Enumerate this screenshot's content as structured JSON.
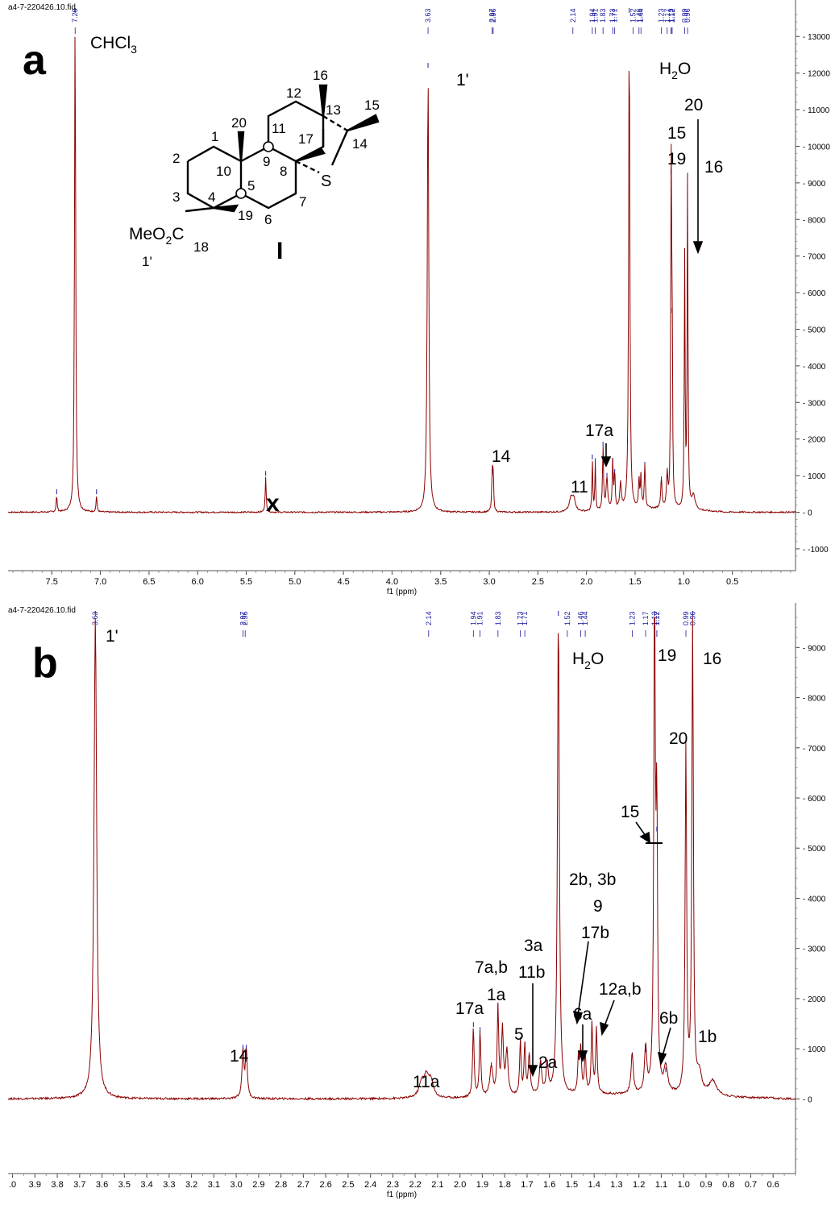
{
  "chart_data": [
    {
      "type": "line",
      "panel": "a",
      "file_id": "a4-7-220426.10.fid",
      "xlabel": "f1 (ppm)",
      "x_range": [
        7.95,
        -0.15
      ],
      "x_ticks": [
        "7.5",
        "7.0",
        "6.5",
        "6.0",
        "5.5",
        "5.0",
        "4.5",
        "4.0",
        "3.5",
        "3.0",
        "2.5",
        "2.0",
        "1.5",
        "1.0",
        "0.5"
      ],
      "y_range": [
        -1200,
        13600
      ],
      "y_ticks": [
        "13000",
        "12000",
        "11000",
        "10000",
        "9000",
        "8000",
        "7000",
        "6000",
        "5000",
        "4000",
        "3000",
        "2000",
        "1000",
        "0",
        "-1000"
      ],
      "peaks": [
        {
          "x": 7.45,
          "y": 450,
          "w": 0.006
        },
        {
          "x": 7.26,
          "y": 13600,
          "w": 0.007
        },
        {
          "x": 7.04,
          "y": 450,
          "w": 0.006
        },
        {
          "x": 5.3,
          "y": 950,
          "w": 0.006
        },
        {
          "x": 3.63,
          "y": 12100,
          "w": 0.009
        },
        {
          "x": 2.97,
          "y": 1000,
          "w": 0.006
        },
        {
          "x": 2.96,
          "y": 1000,
          "w": 0.006
        },
        {
          "x": 2.16,
          "y": 350,
          "w": 0.02
        },
        {
          "x": 2.13,
          "y": 330,
          "w": 0.02
        },
        {
          "x": 1.94,
          "y": 1400,
          "w": 0.005
        },
        {
          "x": 1.91,
          "y": 1300,
          "w": 0.005
        },
        {
          "x": 1.83,
          "y": 1750,
          "w": 0.006
        },
        {
          "x": 1.79,
          "y": 900,
          "w": 0.01
        },
        {
          "x": 1.73,
          "y": 1300,
          "w": 0.006
        },
        {
          "x": 1.71,
          "y": 1000,
          "w": 0.006
        },
        {
          "x": 1.65,
          "y": 700,
          "w": 0.01
        },
        {
          "x": 1.56,
          "y": 13600,
          "w": 0.007
        },
        {
          "x": 1.46,
          "y": 800,
          "w": 0.006
        },
        {
          "x": 1.44,
          "y": 900,
          "w": 0.006
        },
        {
          "x": 1.4,
          "y": 1200,
          "w": 0.007
        },
        {
          "x": 1.23,
          "y": 800,
          "w": 0.008
        },
        {
          "x": 1.17,
          "y": 900,
          "w": 0.008
        },
        {
          "x": 1.13,
          "y": 9200,
          "w": 0.005
        },
        {
          "x": 1.12,
          "y": 5400,
          "w": 0.005
        },
        {
          "x": 0.99,
          "y": 6900,
          "w": 0.005
        },
        {
          "x": 0.96,
          "y": 9100,
          "w": 0.005
        },
        {
          "x": 0.9,
          "y": 400,
          "w": 0.02
        }
      ],
      "peak_labels": [
        "7.26",
        "3.63",
        "2.97",
        "2.96",
        "2.14",
        "1.94",
        "1.91",
        "1.83",
        "1.73",
        "1.71",
        "1.52",
        "1.46",
        "1.44",
        "1.23",
        "1.17",
        "1.13",
        "1.12",
        "1.12",
        "0.99",
        "0.96"
      ],
      "annotations": {
        "chcl3": "CHCl",
        "chcl3_sub": "3",
        "h2o_h": "H",
        "h2o_sub": "2",
        "h2o_o": "O",
        "p1prime": "1'",
        "p14": "14",
        "p11": "11",
        "p17a": "17a",
        "p20": "20",
        "p15": "15",
        "p19": "19",
        "p16": "16",
        "impurity": "x",
        "panel_letter": "a"
      }
    },
    {
      "type": "line",
      "panel": "b",
      "file_id": "a4-7-220426.10.fid",
      "xlabel": "f1 (ppm)",
      "x_range": [
        4.02,
        0.5
      ],
      "x_ticks": [
        ".0",
        "3.9",
        "3.8",
        "3.7",
        "3.6",
        "3.5",
        "3.4",
        "3.3",
        "3.2",
        "3.1",
        "3.0",
        "2.9",
        "2.8",
        "2.7",
        "2.6",
        "2.5",
        "2.4",
        "2.3",
        "2.2",
        "2.1",
        "2.0",
        "1.9",
        "1.8",
        "1.7",
        "1.6",
        "1.5",
        "1.4",
        "1.3",
        "1.2",
        "1.1",
        "1.0",
        "0.9",
        "0.8",
        "0.7",
        "0.6"
      ],
      "y_range": [
        -1200,
        9600
      ],
      "y_ticks": [
        "9000",
        "8000",
        "7000",
        "6000",
        "5000",
        "4000",
        "3000",
        "2000",
        "1000",
        "0"
      ],
      "peaks": [
        {
          "x": 3.63,
          "y": 9600,
          "w": 0.007
        },
        {
          "x": 2.97,
          "y": 950,
          "w": 0.005
        },
        {
          "x": 2.955,
          "y": 950,
          "w": 0.005
        },
        {
          "x": 2.17,
          "y": 300,
          "w": 0.015
        },
        {
          "x": 2.15,
          "y": 350,
          "w": 0.012
        },
        {
          "x": 2.13,
          "y": 330,
          "w": 0.012
        },
        {
          "x": 1.94,
          "y": 1400,
          "w": 0.004
        },
        {
          "x": 1.91,
          "y": 1300,
          "w": 0.004
        },
        {
          "x": 1.86,
          "y": 600,
          "w": 0.008
        },
        {
          "x": 1.83,
          "y": 1750,
          "w": 0.004
        },
        {
          "x": 1.81,
          "y": 1300,
          "w": 0.005
        },
        {
          "x": 1.79,
          "y": 900,
          "w": 0.006
        },
        {
          "x": 1.73,
          "y": 1100,
          "w": 0.004
        },
        {
          "x": 1.71,
          "y": 1000,
          "w": 0.004
        },
        {
          "x": 1.69,
          "y": 800,
          "w": 0.005
        },
        {
          "x": 1.64,
          "y": 650,
          "w": 0.006
        },
        {
          "x": 1.61,
          "y": 600,
          "w": 0.006
        },
        {
          "x": 1.56,
          "y": 9600,
          "w": 0.005
        },
        {
          "x": 1.47,
          "y": 750,
          "w": 0.004
        },
        {
          "x": 1.46,
          "y": 850,
          "w": 0.004
        },
        {
          "x": 1.44,
          "y": 800,
          "w": 0.004
        },
        {
          "x": 1.41,
          "y": 1400,
          "w": 0.004
        },
        {
          "x": 1.39,
          "y": 1300,
          "w": 0.004
        },
        {
          "x": 1.23,
          "y": 800,
          "w": 0.006
        },
        {
          "x": 1.17,
          "y": 900,
          "w": 0.006
        },
        {
          "x": 1.13,
          "y": 9600,
          "w": 0.004
        },
        {
          "x": 1.12,
          "y": 5300,
          "w": 0.004
        },
        {
          "x": 1.08,
          "y": 500,
          "w": 0.01
        },
        {
          "x": 0.99,
          "y": 6900,
          "w": 0.004
        },
        {
          "x": 0.96,
          "y": 9600,
          "w": 0.004
        },
        {
          "x": 0.93,
          "y": 400,
          "w": 0.012
        },
        {
          "x": 0.87,
          "y": 300,
          "w": 0.02
        }
      ],
      "peak_labels": [
        "3.63",
        "2.97",
        "2.96",
        "2.14",
        "1.94",
        "1.91",
        "1.83",
        "1.73",
        "1.71",
        "1.52",
        "1.46",
        "1.44",
        "1.23",
        "1.17",
        "1.13",
        "1.12",
        "1.12",
        "0.99",
        "0.96"
      ],
      "annotations": {
        "p1prime": "1'",
        "h2o_h": "H",
        "h2o_sub": "2",
        "h2o_o": "O",
        "p19": "19",
        "p16": "16",
        "p20": "20",
        "p15": "15",
        "p14": "14",
        "p11a": "11a",
        "p17a": "17a",
        "p7ab": "7a,b",
        "p1a": "1a",
        "p5": "5",
        "p3a": "3a",
        "p11b": "11b",
        "p2a": "2a",
        "p2b3b": "2b, 3b",
        "p9": "9",
        "p17b": "17b",
        "p6a": "6a",
        "p12ab": "12a,b",
        "p6b": "6b",
        "p1b": "1b",
        "panel_letter": "b"
      }
    }
  ],
  "structure": {
    "compound_label": "I",
    "heteroatom": "S",
    "ester_meo": "MeO",
    "ester_sub": "2",
    "ester_c": "C",
    "numbers": [
      "1",
      "2",
      "3",
      "4",
      "5",
      "6",
      "7",
      "8",
      "9",
      "10",
      "11",
      "12",
      "13",
      "14",
      "15",
      "16",
      "17",
      "18",
      "19",
      "20",
      "1'"
    ]
  },
  "colors": {
    "spectrum": "#8b0000",
    "peak_label": "#1a1a9c",
    "axis": "#333333"
  }
}
